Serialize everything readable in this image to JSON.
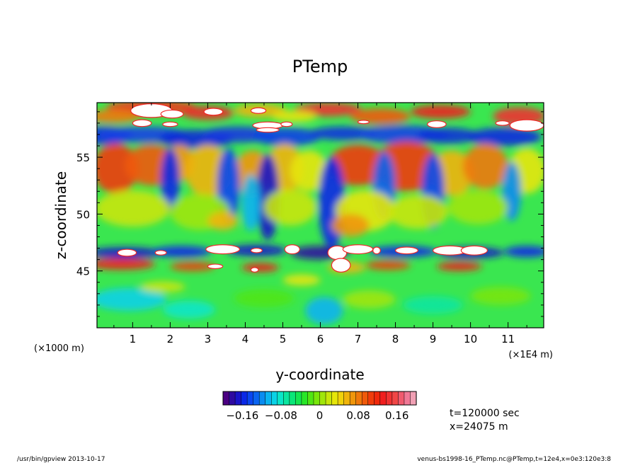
{
  "chart_data": {
    "type": "heatmap",
    "title": "PTemp",
    "xlabel": "y-coordinate",
    "ylabel": "z-coordinate",
    "x_units_left": "(×1000 m)",
    "x_units_right": "(×1E4 m)",
    "x_range": [
      0.05,
      11.95
    ],
    "y_range": [
      40.0,
      59.8
    ],
    "x_ticks": [
      {
        "value": 1,
        "label": "1"
      },
      {
        "value": 2,
        "label": "2"
      },
      {
        "value": 3,
        "label": "3"
      },
      {
        "value": 4,
        "label": "4"
      },
      {
        "value": 5,
        "label": "5"
      },
      {
        "value": 6,
        "label": "6"
      },
      {
        "value": 7,
        "label": "7"
      },
      {
        "value": 8,
        "label": "8"
      },
      {
        "value": 9,
        "label": "9"
      },
      {
        "value": 10,
        "label": "10"
      },
      {
        "value": 11,
        "label": "11"
      }
    ],
    "y_ticks": [
      {
        "value": 45,
        "label": "45"
      },
      {
        "value": 50,
        "label": "50"
      },
      {
        "value": 55,
        "label": "55"
      }
    ],
    "colorbar": {
      "min": -0.2,
      "max": 0.2,
      "step": 0.01,
      "tick_values": [
        -0.16,
        -0.08,
        0,
        0.08,
        0.16
      ],
      "tick_labels": [
        "−0.16",
        "−0.08",
        "0",
        "0.08",
        "0.16"
      ],
      "colors": [
        "#4b0082",
        "#2e0aa0",
        "#1a14c8",
        "#0a28e6",
        "#0a46f0",
        "#0a64f0",
        "#0a8cf0",
        "#0ab4f0",
        "#0ad2e6",
        "#0ae6c8",
        "#0ae6a0",
        "#0ae678",
        "#14e650",
        "#28e628",
        "#50e614",
        "#78e60a",
        "#a0e60a",
        "#c8e60a",
        "#e6e60a",
        "#f0d20a",
        "#f0b40a",
        "#f0960a",
        "#f0780a",
        "#f05a0a",
        "#f03c0a",
        "#f0280a",
        "#f01e1e",
        "#f03232",
        "#f04646",
        "#f05a6e",
        "#f07896",
        "#f0a0b4"
      ]
    },
    "time_label": "t=120000 sec",
    "slice_label": "x=24075 m"
  },
  "footer": {
    "left": "/usr/bin/gpview   2013-10-17",
    "right": "venus-bs1998-16_PTemp.nc@PTemp,t=12e4,x=0e3:120e3:8"
  }
}
